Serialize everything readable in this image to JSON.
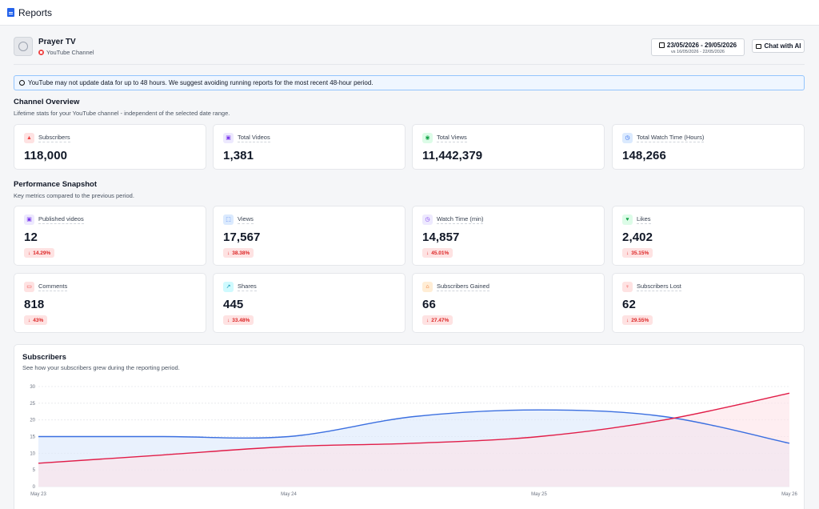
{
  "header": {
    "title": "Reports",
    "icon": "document-icon"
  },
  "channel": {
    "name": "Prayer TV",
    "type": "YouTube Channel"
  },
  "date_range": {
    "range": "23/05/2026 - 29/05/2026",
    "compare": "vs 16/05/2026 - 22/05/2026"
  },
  "chat_button": {
    "label": "Chat with AI"
  },
  "notice": {
    "text": "YouTube may not update data for up to 48 hours. We suggest avoiding running reports for the most recent 48-hour period."
  },
  "overview": {
    "title": "Channel Overview",
    "subtitle": "Lifetime stats for your YouTube channel - independent of the selected date range.",
    "cards": [
      {
        "label": "Subscribers",
        "value": "118,000",
        "icon": "person-icon",
        "color": "#ef4444",
        "bg": "#fee2e2"
      },
      {
        "label": "Total Videos",
        "value": "1,381",
        "icon": "video-icon",
        "color": "#7c3aed",
        "bg": "#ede9fe"
      },
      {
        "label": "Total Views",
        "value": "11,442,379",
        "icon": "eye-icon",
        "color": "#16a34a",
        "bg": "#dcfce7"
      },
      {
        "label": "Total Watch Time (Hours)",
        "value": "148,266",
        "icon": "clock-icon",
        "color": "#2563eb",
        "bg": "#dbeafe"
      }
    ]
  },
  "snapshot": {
    "title": "Performance Snapshot",
    "subtitle": "Key metrics compared to the previous period.",
    "cards": [
      {
        "label": "Published videos",
        "value": "12",
        "change": "14.29%",
        "icon": "video-icon",
        "color": "#7c3aed",
        "bg": "#ede9fe"
      },
      {
        "label": "Views",
        "value": "17,567",
        "change": "38.38%",
        "icon": "expand-icon",
        "color": "#2563eb",
        "bg": "#dbeafe"
      },
      {
        "label": "Watch Time (min)",
        "value": "14,857",
        "change": "45.01%",
        "icon": "clock-icon",
        "color": "#7c3aed",
        "bg": "#ede9fe"
      },
      {
        "label": "Likes",
        "value": "2,402",
        "change": "35.15%",
        "icon": "heart-icon",
        "color": "#16a34a",
        "bg": "#dcfce7"
      },
      {
        "label": "Comments",
        "value": "818",
        "change": "43%",
        "icon": "comment-icon",
        "color": "#ef4444",
        "bg": "#fee2e2"
      },
      {
        "label": "Shares",
        "value": "445",
        "change": "33.48%",
        "icon": "share-icon",
        "color": "#0891b2",
        "bg": "#cffafe"
      },
      {
        "label": "Subscribers Gained",
        "value": "66",
        "change": "27.47%",
        "icon": "user-plus-icon",
        "color": "#ea580c",
        "bg": "#ffedd5"
      },
      {
        "label": "Subscribers Lost",
        "value": "62",
        "change": "29.55%",
        "icon": "user-minus-icon",
        "color": "#ef4444",
        "bg": "#fee2e2"
      }
    ]
  },
  "chart_card": {
    "title": "Subscribers",
    "subtitle": "See how your subscribers grew during the reporting period."
  },
  "chart_data": {
    "type": "area",
    "x": [
      0,
      0.5,
      1,
      1.5,
      2,
      2.5,
      3
    ],
    "x_ticks": [
      "May 23",
      "May 24",
      "May 25",
      "May 26"
    ],
    "x_tick_positions": [
      0,
      1,
      2,
      3
    ],
    "y_ticks": [
      "0",
      "5",
      "10",
      "15",
      "20",
      "25",
      "30"
    ],
    "ylim": [
      0,
      30
    ],
    "grid": true,
    "series": [
      {
        "values": [
          15,
          15,
          15,
          21,
          23,
          21,
          13
        ],
        "color": "#3b6fe0",
        "fill": "#dbe7fb"
      },
      {
        "values": [
          7,
          9.5,
          12,
          13,
          15,
          20,
          28
        ],
        "color": "#e11d48",
        "fill": "#fde2e8"
      }
    ]
  }
}
